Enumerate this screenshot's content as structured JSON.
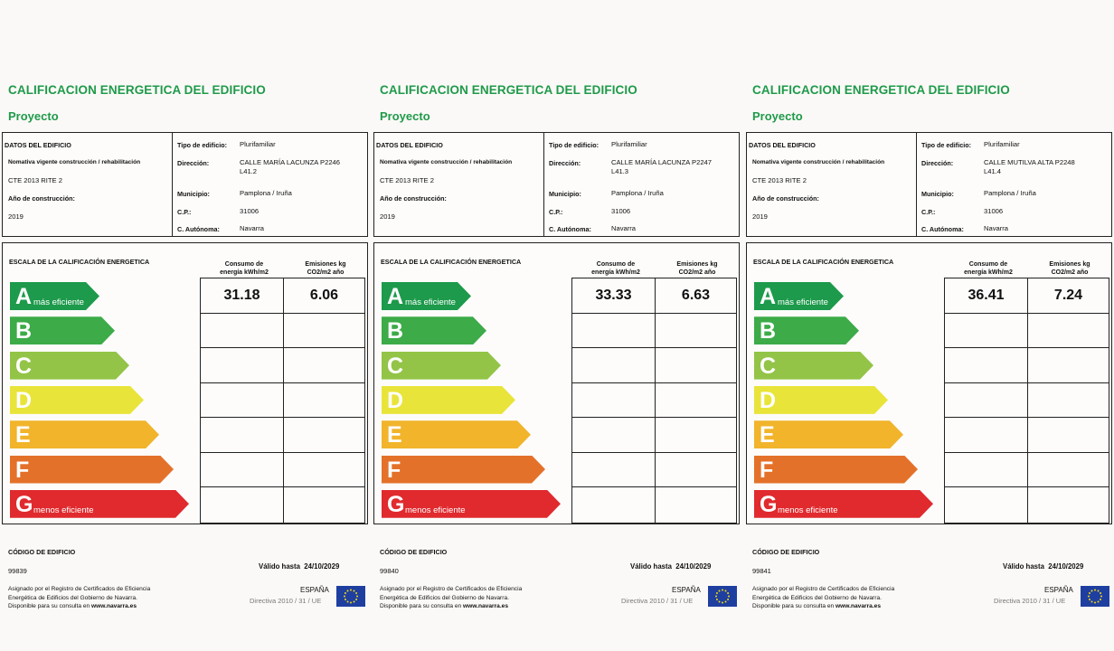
{
  "colors": {
    "title_green": "#1f9a4a",
    "A": "#1d9a4b",
    "B": "#3cab48",
    "C": "#93c447",
    "D": "#e9e439",
    "E": "#f1b42b",
    "F": "#e4712a",
    "G": "#e02a2e"
  },
  "labels": {
    "title": "CALIFICACION ENERGETICA DEL EDIFICIO",
    "subtitle": "Proyecto",
    "datos": "DATOS DEL EDIFICIO",
    "normativa": "Nomativa vigente construcción / rehabilitación",
    "ano": "Año de construcción:",
    "tipo": "Tipo de edificio:",
    "direccion": "Dirección:",
    "municipio": "Municipio:",
    "cp": "C.P.:",
    "autonoma": "C. Autónoma:",
    "escala": "ESCALA DE LA CALIFICACIÓN ENERGETICA",
    "consumo_1": "Consumo de",
    "consumo_2": "energía kWh/m2",
    "emisiones_1": "Emisiones kg",
    "emisiones_2": "CO2/m2 año",
    "mas_eficiente": "más eficiente",
    "menos_eficiente": "menos eficiente",
    "codigo": "CÓDIGO DE EDIFICIO",
    "valido": "Válido hasta",
    "asignado_1": "Asignado por el Registro de Certificados de Eficiencia",
    "asignado_2": "Energética de Edificios del Gobierno de Navarra.",
    "asignado_3": "Disponible para su consulta en",
    "web": "www.navarra.es",
    "espana": "ESPAÑA",
    "directiva": "Directiva 2010 / 31 / UE"
  },
  "grades": [
    "A",
    "B",
    "C",
    "D",
    "E",
    "F",
    "G"
  ],
  "certificates": [
    {
      "normativa": "CTE 2013 RITE 2",
      "ano": "2019",
      "tipo": "Plurifamiliar",
      "direccion_1": "CALLE MARÍA LACUNZA P2246",
      "direccion_2": "L41.2",
      "municipio": "Pamplona / Iruña",
      "cp": "31006",
      "autonoma": "Navarra",
      "consumo": "31.18",
      "emisiones": "6.06",
      "codigo": "99839",
      "fecha": "24/10/2029"
    },
    {
      "normativa": "CTE 2013 RITE 2",
      "ano": "2019",
      "tipo": "Plurifamiliar",
      "direccion_1": "CALLE MARÍA LACUNZA P2247",
      "direccion_2": "L41.3",
      "municipio": "Pamplona / Iruña",
      "cp": "31006",
      "autonoma": "Navarra",
      "consumo": "33.33",
      "emisiones": "6.63",
      "codigo": "99840",
      "fecha": "24/10/2029"
    },
    {
      "normativa": "CTE 2013 RITE 2",
      "ano": "2019",
      "tipo": "Plurifamiliar",
      "direccion_1": "CALLE MUTILVA ALTA P2248",
      "direccion_2": "L41.4",
      "municipio": "Pamplona / Iruña",
      "cp": "31006",
      "autonoma": "Navarra",
      "consumo": "36.41",
      "emisiones": "7.24",
      "codigo": "99841",
      "fecha": "24/10/2029"
    }
  ]
}
